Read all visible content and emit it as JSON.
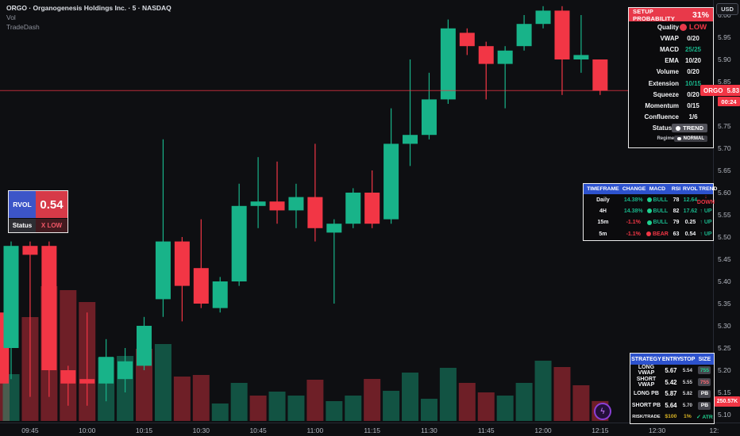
{
  "colors": {
    "green": "#18b389",
    "red": "#f23645",
    "blue": "#2d52cd",
    "panel_border": "#ececec",
    "background": "#0e0f12",
    "label_red": "#e8394a"
  },
  "legend": {
    "title": "ORGO · Organogenesis Holdings Inc. · 5 · NASDAQ",
    "indicator": "Vol",
    "watermark": "TradeDash"
  },
  "setup_panel": {
    "title": "SETUP PROBABILITY",
    "value": "31%",
    "rows": [
      {
        "label": "Quality",
        "value": "LOW",
        "style": "dot-red"
      },
      {
        "label": "VWAP",
        "value": "0/20",
        "style": "white"
      },
      {
        "label": "MACD",
        "value": "25/25",
        "style": "green"
      },
      {
        "label": "EMA",
        "value": "10/20",
        "style": "white"
      },
      {
        "label": "Volume",
        "value": "0/20",
        "style": "white"
      },
      {
        "label": "Extension",
        "value": "10/15",
        "style": "green"
      },
      {
        "label": "Squeeze",
        "value": "0/20",
        "style": "white"
      },
      {
        "label": "Momentum",
        "value": "0/15",
        "style": "white"
      },
      {
        "label": "Confluence",
        "value": "1/6",
        "style": "white"
      },
      {
        "label": "Status",
        "value": "TREND",
        "style": "badge"
      },
      {
        "label": "Regime",
        "value": "NORMAL",
        "style": "badge-small"
      }
    ]
  },
  "rvol_panel": {
    "label": "RVOL",
    "value": "0.54",
    "status_label": "Status",
    "status_value": "X LOW"
  },
  "timeframe_table": {
    "headers": [
      "TIMEFRAME",
      "CHANGE",
      "MACD",
      "RSI",
      "RVOL",
      "TREND"
    ],
    "rows": [
      {
        "tf": "Daily",
        "change": "14.38%",
        "changeC": "g",
        "macd": "BULL",
        "macdC": "g",
        "rsi": "78",
        "rvol": "12.64",
        "rvolC": "g",
        "trend": "↓ DOWN",
        "trendC": "r"
      },
      {
        "tf": "4H",
        "change": "14.38%",
        "changeC": "g",
        "macd": "BULL",
        "macdC": "g",
        "rsi": "82",
        "rvol": "17.62",
        "rvolC": "g",
        "trend": "↑ UP",
        "trendC": "g"
      },
      {
        "tf": "15m",
        "change": "-1.1%",
        "changeC": "r",
        "macd": "BULL",
        "macdC": "g",
        "rsi": "79",
        "rvol": "0.25",
        "rvolC": "w",
        "trend": "↑ UP",
        "trendC": "g"
      },
      {
        "tf": "5m",
        "change": "-1.1%",
        "changeC": "r",
        "macd": "BEAR",
        "macdC": "r",
        "rsi": "63",
        "rvol": "0.54",
        "rvolC": "w",
        "trend": "↑ UP",
        "trendC": "g"
      }
    ]
  },
  "strategy_table": {
    "headers": [
      "STRATEGY",
      "ENTRY",
      "STOP",
      "SIZE"
    ],
    "rows": [
      {
        "name": "LONG VWAP",
        "entry": "5.67",
        "stop": "5.54",
        "size": "755",
        "sizeC": "g"
      },
      {
        "name": "SHORT VWAP",
        "entry": "5.42",
        "stop": "5.55",
        "size": "755",
        "sizeC": "r"
      },
      {
        "name": "LONG PB",
        "entry": "5.87",
        "stop": "5.82",
        "size": "PB",
        "sizeC": "w"
      },
      {
        "name": "SHORT PB",
        "entry": "5.64",
        "stop": "5.70",
        "size": "PB",
        "sizeC": "w"
      }
    ],
    "risk_row": {
      "label": "RISK/TRADE",
      "risk": "$100",
      "percent": "1%",
      "atr": "✓ ATR"
    }
  },
  "price_axis": {
    "currency": "USD",
    "ticks": [
      "6.00",
      "5.95",
      "5.90",
      "5.85",
      "5.80",
      "5.75",
      "5.70",
      "5.65",
      "5.60",
      "5.55",
      "5.50",
      "5.45",
      "5.40",
      "5.35",
      "5.30",
      "5.25",
      "5.20",
      "5.15",
      "5.10"
    ],
    "last_price_label": {
      "symbol": "ORGO",
      "price": "5.83",
      "countdown": "00:24"
    },
    "volume_label": "250.57K"
  },
  "time_axis": {
    "ticks": [
      "09:45",
      "10:00",
      "10:15",
      "10:30",
      "10:45",
      "11:00",
      "11:15",
      "11:30",
      "11:45",
      "12:00",
      "12:15",
      "12:30",
      "12:"
    ]
  },
  "chart_data": {
    "type": "candlestick+volume",
    "symbol": "ORGO",
    "interval": "5m",
    "last_price": 5.83,
    "current_volume_label": "250.57K",
    "price_range": [
      5.1,
      6.0
    ],
    "grid": false,
    "volume_unit": "K-shares",
    "candles": [
      {
        "t": "09:35",
        "o": 5.33,
        "h": 5.33,
        "l": 5.17,
        "c": 5.17,
        "v": 1170,
        "partial": true
      },
      {
        "t": "09:40",
        "o": 5.25,
        "h": 5.49,
        "l": 5.18,
        "c": 5.48,
        "v": 590
      },
      {
        "t": "09:45",
        "o": 5.48,
        "h": 5.49,
        "l": 5.14,
        "c": 5.46,
        "v": 1310
      },
      {
        "t": "09:50",
        "o": 5.48,
        "h": 5.49,
        "l": 5.14,
        "c": 5.2,
        "v": 1700
      },
      {
        "t": "09:55",
        "o": 5.2,
        "h": 5.21,
        "l": 5.12,
        "c": 5.17,
        "v": 1650
      },
      {
        "t": "10:00",
        "o": 5.18,
        "h": 5.33,
        "l": 5.12,
        "c": 5.17,
        "v": 1500
      },
      {
        "t": "10:05",
        "o": 5.17,
        "h": 5.27,
        "l": 5.13,
        "c": 5.23,
        "v": 800
      },
      {
        "t": "10:10",
        "o": 5.18,
        "h": 5.25,
        "l": 5.15,
        "c": 5.22,
        "v": 820
      },
      {
        "t": "10:15",
        "o": 5.21,
        "h": 5.32,
        "l": 5.2,
        "c": 5.3,
        "v": 910,
        "vc": "r"
      },
      {
        "t": "10:20",
        "o": 5.36,
        "h": 5.72,
        "l": 5.32,
        "c": 5.49,
        "v": 970
      },
      {
        "t": "10:25",
        "o": 5.49,
        "h": 5.5,
        "l": 5.31,
        "c": 5.39,
        "v": 560
      },
      {
        "t": "10:30",
        "o": 5.43,
        "h": 5.54,
        "l": 5.34,
        "c": 5.35,
        "v": 580
      },
      {
        "t": "10:35",
        "o": 5.34,
        "h": 5.41,
        "l": 5.33,
        "c": 5.4,
        "v": 220
      },
      {
        "t": "10:40",
        "o": 5.4,
        "h": 5.62,
        "l": 5.39,
        "c": 5.57,
        "v": 480
      },
      {
        "t": "10:45",
        "o": 5.57,
        "h": 5.68,
        "l": 5.52,
        "c": 5.58,
        "v": 320,
        "vc": "r"
      },
      {
        "t": "10:50",
        "o": 5.58,
        "h": 5.67,
        "l": 5.53,
        "c": 5.56,
        "v": 370,
        "vc": "g"
      },
      {
        "t": "10:55",
        "o": 5.56,
        "h": 5.62,
        "l": 5.52,
        "c": 5.59,
        "v": 320
      },
      {
        "t": "11:00",
        "o": 5.59,
        "h": 5.71,
        "l": 5.49,
        "c": 5.52,
        "v": 520
      },
      {
        "t": "11:05",
        "o": 5.51,
        "h": 5.54,
        "l": 5.35,
        "c": 5.53,
        "v": 250
      },
      {
        "t": "11:10",
        "o": 5.53,
        "h": 5.61,
        "l": 5.52,
        "c": 5.6,
        "v": 320
      },
      {
        "t": "11:15",
        "o": 5.6,
        "h": 5.65,
        "l": 5.52,
        "c": 5.53,
        "v": 530
      },
      {
        "t": "11:20",
        "o": 5.54,
        "h": 5.79,
        "l": 5.53,
        "c": 5.71,
        "v": 380
      },
      {
        "t": "11:25",
        "o": 5.71,
        "h": 5.9,
        "l": 5.66,
        "c": 5.73,
        "v": 610
      },
      {
        "t": "11:30",
        "o": 5.73,
        "h": 5.87,
        "l": 5.72,
        "c": 5.81,
        "v": 280
      },
      {
        "t": "11:35",
        "o": 5.81,
        "h": 5.99,
        "l": 5.8,
        "c": 5.97,
        "v": 670
      },
      {
        "t": "11:40",
        "o": 5.96,
        "h": 5.97,
        "l": 5.91,
        "c": 5.93,
        "v": 480
      },
      {
        "t": "11:45",
        "o": 5.93,
        "h": 5.94,
        "l": 5.81,
        "c": 5.89,
        "v": 360
      },
      {
        "t": "11:50",
        "o": 5.89,
        "h": 5.93,
        "l": 5.79,
        "c": 5.92,
        "v": 320
      },
      {
        "t": "11:55",
        "o": 5.93,
        "h": 6.0,
        "l": 5.92,
        "c": 5.98,
        "v": 480
      },
      {
        "t": "12:00",
        "o": 5.98,
        "h": 6.02,
        "l": 5.97,
        "c": 6.01,
        "v": 760
      },
      {
        "t": "12:05",
        "o": 6.01,
        "h": 6.02,
        "l": 5.82,
        "c": 5.9,
        "v": 680
      },
      {
        "t": "12:10",
        "o": 5.9,
        "h": 6.0,
        "l": 5.87,
        "c": 5.91,
        "v": 450,
        "vc": "r"
      },
      {
        "t": "12:15",
        "o": 5.9,
        "h": 5.9,
        "l": 5.82,
        "c": 5.83,
        "v": 251
      }
    ]
  }
}
